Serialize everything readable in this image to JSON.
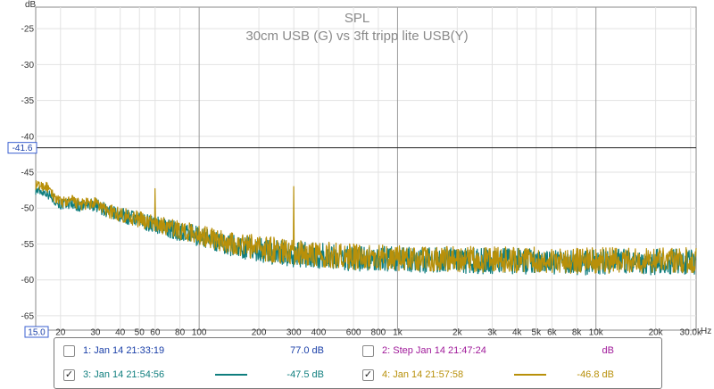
{
  "chart_data": {
    "type": "line",
    "title": "SPL",
    "subtitle": "30cm USB (G) vs 3ft tripp lite USB(Y)",
    "ylabel": "dB",
    "xlabel": "Hz",
    "x_scale": "log",
    "xlim": [
      15,
      32000
    ],
    "ylim": [
      -67,
      -22
    ],
    "x_ticks": [
      15,
      20,
      30,
      40,
      50,
      60,
      80,
      100,
      200,
      300,
      400,
      600,
      800,
      1000,
      2000,
      3000,
      4000,
      5000,
      6000,
      8000,
      10000,
      20000,
      30000
    ],
    "x_tick_labels": [
      "15.0",
      "20",
      "30",
      "40",
      "50",
      "60",
      "80",
      "100",
      "200",
      "300",
      "400",
      "600",
      "800",
      "1k",
      "2k",
      "3k",
      "4k",
      "5k",
      "6k",
      "8k",
      "10k",
      "20k",
      "30.0k"
    ],
    "y_ticks": [
      -25,
      -30,
      -35,
      -40,
      -45,
      -50,
      -55,
      -60,
      -65
    ],
    "y_tick_labels": [
      "-25",
      "-30",
      "-35",
      "-40",
      "-45",
      "-50",
      "-55",
      "-60",
      "-65"
    ],
    "cursor_y": -41.6,
    "cursor_y_label": "-41.6",
    "grid": true,
    "series": [
      {
        "name": "3: Jan 14 21:54:56",
        "color": "#0f7e7e",
        "x": [
          15,
          17,
          18,
          20,
          23,
          25,
          30,
          35,
          40,
          45,
          50,
          55,
          60,
          70,
          80,
          90,
          100,
          120,
          150,
          200,
          250,
          300,
          400,
          500,
          600,
          800,
          1000,
          1500,
          2000,
          3000,
          5000,
          7000,
          10000,
          15000,
          20000,
          30000
        ],
        "y": [
          -47.5,
          -47.8,
          -48.5,
          -49.5,
          -49.3,
          -49.8,
          -49.5,
          -50.5,
          -51.0,
          -51.3,
          -51.8,
          -52.0,
          -52.3,
          -52.8,
          -53.3,
          -53.6,
          -54.0,
          -54.6,
          -55.2,
          -55.8,
          -56.2,
          -56.4,
          -56.6,
          -56.8,
          -57.0,
          -57.1,
          -57.2,
          -57.3,
          -57.3,
          -57.4,
          -57.4,
          -57.5,
          -57.5,
          -57.5,
          -57.5,
          -57.5
        ],
        "spread": 1.8,
        "legend_value": "-47.5 dB"
      },
      {
        "name": "4: Jan 14 21:57:58",
        "color": "#b8900a",
        "x": [
          15,
          17,
          18,
          20,
          23,
          25,
          30,
          35,
          40,
          45,
          50,
          55,
          60,
          70,
          80,
          90,
          100,
          120,
          150,
          200,
          250,
          300,
          400,
          500,
          600,
          800,
          1000,
          1500,
          2000,
          3000,
          5000,
          7000,
          10000,
          15000,
          20000,
          30000
        ],
        "y": [
          -46.8,
          -47.0,
          -48.0,
          -49.2,
          -49.0,
          -49.5,
          -49.4,
          -50.4,
          -50.9,
          -51.2,
          -51.6,
          -51.9,
          -52.2,
          -52.6,
          -53.1,
          -53.4,
          -53.7,
          -54.3,
          -54.9,
          -55.5,
          -55.9,
          -56.1,
          -56.4,
          -56.6,
          -56.8,
          -56.9,
          -57.0,
          -57.1,
          -57.1,
          -57.2,
          -57.2,
          -57.3,
          -57.3,
          -57.3,
          -57.3,
          -57.3
        ],
        "spread": 1.8,
        "spikes": [
          [
            60,
            -47.3
          ],
          [
            300,
            -47.0
          ]
        ],
        "legend_value": "-46.8 dB"
      }
    ],
    "legend_placement": "bottom"
  },
  "legend": {
    "items": [
      {
        "label": "1: Jan 14 21:33:19",
        "value": "77.0 dB",
        "checked": false,
        "color": "#1a3fa8"
      },
      {
        "label": "2: Step Jan 14 21:47:24",
        "value": "dB",
        "checked": false,
        "color": "#a01a9a"
      },
      {
        "label": "3: Jan 14 21:54:56",
        "value": "-47.5 dB",
        "checked": true,
        "color": "#0f7e7e"
      },
      {
        "label": "4: Jan 14 21:57:58",
        "value": "-46.8 dB",
        "checked": true,
        "color": "#b8900a"
      }
    ]
  },
  "check_mark": "✓"
}
